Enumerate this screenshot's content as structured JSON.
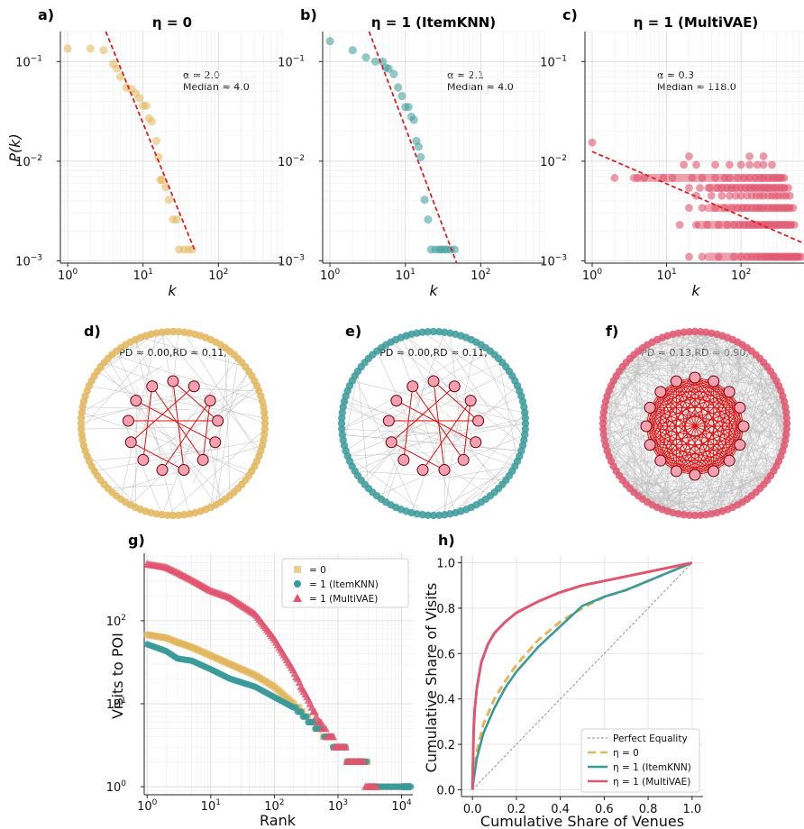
{
  "colors": {
    "eta0": "#e2b65a",
    "itemknn": "#3a9a9a",
    "multivae": "#e0556f",
    "fit": "#e02020",
    "core": "#f4a0ae",
    "core_edge": "#e01010"
  },
  "panel_letters": [
    "a)",
    "b)",
    "c)",
    "d)",
    "e)",
    "f)",
    "g)",
    "h)"
  ],
  "degree_panels": {
    "titles": [
      "η = 0",
      "η = 1 (ItemKNN)",
      "η = 1 (MultiVAE)"
    ],
    "ylabel": "P(k)",
    "xlabel": "k",
    "annotations": [
      {
        "alpha": "α ≈ 2.0",
        "median": "Median  ≈ 4.0"
      },
      {
        "alpha": "α ≈ 2.1",
        "median": "Median  ≈ 4.0"
      },
      {
        "alpha": "α ≈ 0.3",
        "median": "Median  ≈ 118.0"
      }
    ]
  },
  "network_panels": [
    {
      "label": "PD ≈ 0.00,RD ≈ 0.11,"
    },
    {
      "label": "PD ≈ 0.00,RD ≈ 0.11,"
    },
    {
      "label": "PD ≈ 0.13,RD ≈ 0.90,"
    }
  ],
  "chart_data": [
    {
      "type": "scatter",
      "panel": "a",
      "title": "η = 0",
      "xlabel": "k",
      "ylabel": "P(k)",
      "xscale": "log",
      "yscale": "log",
      "xlim": [
        0.8,
        700
      ],
      "ylim": [
        0.00095,
        0.2
      ],
      "points": [
        [
          1,
          0.135
        ],
        [
          2,
          0.135
        ],
        [
          3,
          0.13
        ],
        [
          4,
          0.095
        ],
        [
          4.5,
          0.085
        ],
        [
          5,
          0.07
        ],
        [
          6,
          0.055
        ],
        [
          7,
          0.053
        ],
        [
          8,
          0.048
        ],
        [
          9,
          0.043
        ],
        [
          10,
          0.036
        ],
        [
          11,
          0.036
        ],
        [
          12,
          0.027
        ],
        [
          13,
          0.025
        ],
        [
          15,
          0.016
        ],
        [
          16,
          0.011
        ],
        [
          17,
          0.0065
        ],
        [
          18,
          0.0065
        ],
        [
          20,
          0.0055
        ],
        [
          22,
          0.0041
        ],
        [
          25,
          0.0026
        ],
        [
          28,
          0.0026
        ],
        [
          30,
          0.0013
        ],
        [
          35,
          0.0013
        ],
        [
          40,
          0.0013
        ],
        [
          45,
          0.0013
        ]
      ],
      "fit": {
        "alpha": 2.0,
        "x": [
          3.2,
          48
        ],
        "y": [
          0.2,
          0.0013
        ]
      },
      "annotation": [
        "α ≈ 2.0",
        "Median  ≈ 4.0"
      ]
    },
    {
      "type": "scatter",
      "panel": "b",
      "title": "η = 1 (ItemKNN)",
      "xlabel": "k",
      "ylabel": "",
      "xscale": "log",
      "yscale": "log",
      "xlim": [
        0.8,
        700
      ],
      "ylim": [
        0.00095,
        0.2
      ],
      "points": [
        [
          1,
          0.16
        ],
        [
          2,
          0.13
        ],
        [
          3,
          0.11
        ],
        [
          4,
          0.1
        ],
        [
          5,
          0.1
        ],
        [
          5.5,
          0.087
        ],
        [
          6,
          0.085
        ],
        [
          7,
          0.075
        ],
        [
          8,
          0.055
        ],
        [
          9,
          0.045
        ],
        [
          10,
          0.035
        ],
        [
          11,
          0.035
        ],
        [
          12,
          0.028
        ],
        [
          13,
          0.026
        ],
        [
          14,
          0.016
        ],
        [
          15,
          0.014
        ],
        [
          16,
          0.011
        ],
        [
          18,
          0.0041
        ],
        [
          20,
          0.0026
        ],
        [
          22,
          0.0013
        ],
        [
          25,
          0.0013
        ],
        [
          28,
          0.0013
        ],
        [
          30,
          0.0013
        ],
        [
          33,
          0.0013
        ],
        [
          36,
          0.0013
        ],
        [
          40,
          0.0013
        ],
        [
          45,
          0.0013
        ]
      ],
      "fit": {
        "alpha": 2.1,
        "x": [
          3.3,
          48
        ],
        "y": [
          0.2,
          0.00095
        ]
      },
      "annotation": [
        "α ≈ 2.1",
        "Median  ≈ 4.0"
      ]
    },
    {
      "type": "scatter",
      "panel": "c",
      "title": "η = 1 (MultiVAE)",
      "xlabel": "k",
      "ylabel": "",
      "xscale": "log",
      "yscale": "log",
      "xlim": [
        0.8,
        700
      ],
      "ylim": [
        0.00095,
        0.2
      ],
      "bands": [
        {
          "y": 0.0154,
          "x": [
            1
          ]
        },
        {
          "y": 0.0112,
          "x": [
            20,
            130,
            200
          ]
        },
        {
          "y": 0.0092,
          "x": [
            17,
            25,
            45,
            70,
            100,
            130,
            165,
            200,
            260
          ]
        },
        {
          "y": 0.0068,
          "x": [
            2,
            4,
            5,
            9,
            12,
            22,
            30,
            45,
            60,
            70,
            90,
            110,
            130,
            155,
            180,
            200,
            230,
            260,
            290,
            320,
            350,
            380
          ]
        },
        {
          "y": 0.0054,
          "x": [
            20,
            28,
            38,
            48,
            55,
            65,
            75,
            85,
            100,
            115,
            130,
            145,
            160,
            180,
            200,
            220,
            240,
            270,
            300,
            340,
            380,
            430
          ]
        },
        {
          "y": 0.0045,
          "x": [
            25,
            40,
            55,
            70,
            85,
            100,
            120,
            140,
            160,
            180,
            200,
            230,
            260,
            290,
            320,
            360,
            400,
            450
          ]
        },
        {
          "y": 0.0034,
          "x": [
            20,
            30,
            45,
            60,
            75,
            90,
            105,
            120,
            140,
            160,
            180,
            200,
            230,
            260,
            290,
            320,
            360,
            400,
            450,
            500
          ]
        },
        {
          "y": 0.0023,
          "x": [
            15,
            25,
            35,
            50,
            65,
            80,
            95,
            110,
            125,
            140,
            155,
            170,
            190,
            210,
            230,
            250,
            280,
            310,
            340,
            380,
            420,
            470,
            520
          ]
        },
        {
          "y": 0.0011,
          "x": [
            20,
            30,
            50,
            80,
            100,
            120,
            140,
            160,
            180,
            200,
            220,
            240,
            260,
            280,
            300,
            330,
            360,
            390,
            420,
            450,
            480,
            520,
            560,
            600,
            640
          ]
        }
      ],
      "fit": {
        "alpha": 0.3,
        "x": [
          1,
          700
        ],
        "y": [
          0.0125,
          0.0015
        ]
      },
      "annotation": [
        "α ≈ 0.3",
        "Median  ≈ 118.0"
      ]
    },
    {
      "type": "scatter",
      "panel": "g",
      "title": "",
      "xlabel": "Rank",
      "ylabel": "Visits to POI",
      "xscale": "log",
      "yscale": "log",
      "xlim": [
        0.9,
        15000
      ],
      "ylim": [
        0.8,
        650
      ],
      "legend": {
        "placement": "top-right",
        "entries": [
          "= 0",
          "= 1 (ItemKNN)",
          "= 1 (MultiVAE)"
        ]
      },
      "series": [
        {
          "name": "= 0",
          "marker": "square",
          "x": [
            1,
            2,
            3,
            5,
            10,
            20,
            50,
            100,
            200,
            500,
            1000,
            2000,
            5000,
            10000
          ],
          "y": [
            68,
            62,
            55,
            48,
            38,
            30,
            22,
            16,
            10,
            5,
            3,
            2,
            1,
            1
          ]
        },
        {
          "name": "= 1 (ItemKNN)",
          "marker": "circle",
          "x": [
            1,
            2,
            3,
            5,
            10,
            20,
            50,
            100,
            200,
            500,
            1000,
            2000,
            5000,
            14000
          ],
          "y": [
            52,
            43,
            35,
            33,
            26,
            20,
            16,
            12,
            9,
            5,
            3,
            2,
            1,
            1
          ]
        },
        {
          "name": "= 1 (MultiVAE)",
          "marker": "triangle",
          "x": [
            1,
            2,
            3,
            5,
            10,
            20,
            50,
            100,
            200,
            500,
            1000,
            2000,
            4000
          ],
          "y": [
            480,
            440,
            380,
            310,
            230,
            190,
            120,
            60,
            25,
            6,
            3,
            2,
            1
          ]
        }
      ]
    },
    {
      "type": "line",
      "panel": "h",
      "title": "",
      "xlabel": "Cumulative Share of Venues",
      "ylabel": "Cumulative Share of Visits",
      "xlim": [
        -0.05,
        1.05
      ],
      "ylim": [
        -0.03,
        1.03
      ],
      "grid": true,
      "legend": {
        "placement": "bottom-right",
        "entries": [
          "Perfect Equality",
          "η = 0",
          "η = 1 (ItemKNN)",
          "η = 1 (MultiVAE)"
        ]
      },
      "series": [
        {
          "name": "Perfect Equality",
          "x": [
            0,
            1
          ],
          "y": [
            0,
            1
          ]
        },
        {
          "name": "η = 0",
          "x": [
            0,
            0.005,
            0.02,
            0.05,
            0.1,
            0.15,
            0.2,
            0.3,
            0.4,
            0.5,
            0.6,
            0.7,
            0.8,
            0.9,
            1.0
          ],
          "y": [
            0,
            0.06,
            0.17,
            0.29,
            0.4,
            0.48,
            0.55,
            0.66,
            0.74,
            0.8,
            0.85,
            0.88,
            0.92,
            0.96,
            1.0
          ]
        },
        {
          "name": "η = 1 (ItemKNN)",
          "x": [
            0,
            0.005,
            0.02,
            0.05,
            0.1,
            0.15,
            0.2,
            0.3,
            0.4,
            0.5,
            0.6,
            0.7,
            0.8,
            0.9,
            1.0
          ],
          "y": [
            0,
            0.04,
            0.14,
            0.25,
            0.36,
            0.45,
            0.52,
            0.63,
            0.72,
            0.81,
            0.85,
            0.88,
            0.92,
            0.96,
            1.0
          ]
        },
        {
          "name": "η = 1 (MultiVAE)",
          "x": [
            0,
            0.005,
            0.01,
            0.02,
            0.04,
            0.07,
            0.1,
            0.15,
            0.2,
            0.3,
            0.4,
            0.5,
            0.6,
            0.7,
            0.8,
            0.9,
            1.0
          ],
          "y": [
            0,
            0.25,
            0.35,
            0.45,
            0.56,
            0.64,
            0.69,
            0.74,
            0.78,
            0.83,
            0.87,
            0.9,
            0.92,
            0.94,
            0.96,
            0.98,
            1.0
          ]
        }
      ]
    }
  ]
}
